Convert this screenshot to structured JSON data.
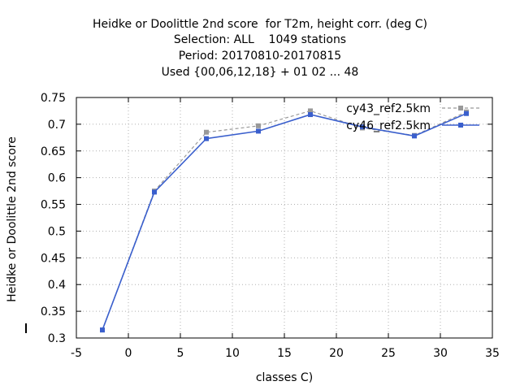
{
  "chart_data": {
    "type": "line",
    "title_lines": [
      "Heidke or Doolittle 2nd score  for T2m, height corr. (deg C)",
      "Selection: ALL    1049 stations",
      "Period: 20170810-20170815",
      "Used {00,06,12,18} + 01 02 ... 48"
    ],
    "xlabel": "classes C)",
    "ylabel": "Heidke or Doolittle 2nd score",
    "xlim": [
      -5,
      35
    ],
    "ylim": [
      0.3,
      0.75
    ],
    "xticks": [
      -5,
      0,
      5,
      10,
      15,
      20,
      25,
      30,
      35
    ],
    "yticks": [
      0.3,
      0.35,
      0.4,
      0.45,
      0.5,
      0.55,
      0.6,
      0.65,
      0.7,
      0.75
    ],
    "xtick_labels": [
      "-5",
      "0",
      "5",
      "10",
      "15",
      "20",
      "25",
      "30",
      "35"
    ],
    "ytick_labels": [
      "0.3",
      "0.35",
      "0.4",
      "0.45",
      "0.5",
      "0.55",
      "0.6",
      "0.65",
      "0.7",
      "0.75"
    ],
    "grid": true,
    "legend_position": "top-right",
    "series": [
      {
        "name": "cy43_ref2.5km",
        "color": "#999999",
        "dashed": true,
        "x": [
          -2.5,
          2.5,
          7.5,
          12.5,
          17.5,
          22.5,
          27.5,
          32.5
        ],
        "y": [
          0.315,
          0.575,
          0.685,
          0.697,
          0.725,
          0.693,
          0.679,
          0.723
        ]
      },
      {
        "name": "cy46_ref2.5km",
        "color": "#3a5fcd",
        "dashed": false,
        "x": [
          -2.5,
          2.5,
          7.5,
          12.5,
          17.5,
          22.5,
          27.5,
          32.5
        ],
        "y": [
          0.315,
          0.573,
          0.673,
          0.687,
          0.718,
          0.695,
          0.678,
          0.72
        ]
      }
    ]
  }
}
